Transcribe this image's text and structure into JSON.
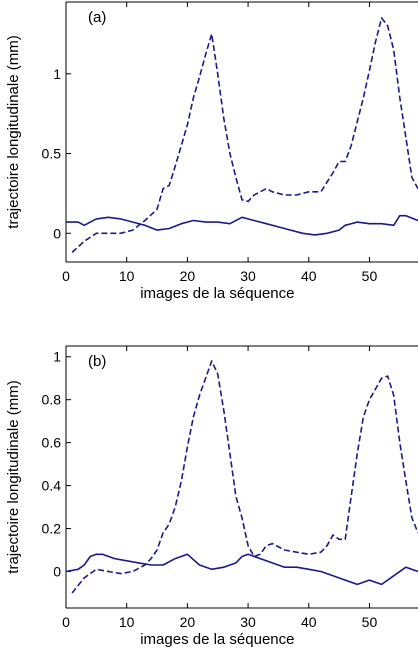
{
  "chart_data": [
    {
      "type": "line",
      "annotation": "(a)",
      "xlabel": "images de la séquence",
      "ylabel": "trajectoire longitudinale (mm)",
      "xlim": [
        0,
        58
      ],
      "ylim": [
        -0.18,
        1.45
      ],
      "xticks": [
        "0",
        "10",
        "20",
        "30",
        "40",
        "50"
      ],
      "yticks": [
        "0",
        "0.5",
        "1"
      ],
      "grid": false,
      "line_color": "#1a1a8c",
      "series": [
        {
          "style": "dashed",
          "x": [
            1,
            3,
            5,
            7,
            9,
            11,
            13,
            15,
            16,
            17,
            18,
            19,
            20,
            21,
            22,
            23,
            24,
            25,
            26,
            27,
            28,
            29,
            30,
            31,
            32,
            33,
            34,
            36,
            38,
            40,
            42,
            44,
            45,
            46,
            47,
            48,
            49,
            50,
            51,
            52,
            53,
            54,
            55,
            56,
            57,
            58
          ],
          "y": [
            -0.12,
            -0.05,
            0.0,
            0.0,
            0.0,
            0.02,
            0.08,
            0.15,
            0.28,
            0.3,
            0.42,
            0.55,
            0.68,
            0.85,
            0.98,
            1.12,
            1.25,
            1.0,
            0.72,
            0.5,
            0.35,
            0.21,
            0.2,
            0.24,
            0.26,
            0.28,
            0.26,
            0.24,
            0.24,
            0.26,
            0.26,
            0.38,
            0.45,
            0.45,
            0.55,
            0.7,
            0.85,
            1.02,
            1.2,
            1.35,
            1.3,
            1.15,
            0.85,
            0.6,
            0.35,
            0.28
          ]
        },
        {
          "style": "solid",
          "x": [
            0,
            2,
            3,
            5,
            7,
            9,
            11,
            13,
            15,
            17,
            19,
            21,
            23,
            25,
            27,
            29,
            30,
            31,
            33,
            35,
            37,
            39,
            41,
            43,
            45,
            46,
            48,
            50,
            52,
            54,
            55,
            56,
            58
          ],
          "y": [
            0.07,
            0.07,
            0.05,
            0.09,
            0.1,
            0.09,
            0.07,
            0.05,
            0.02,
            0.03,
            0.06,
            0.08,
            0.07,
            0.07,
            0.06,
            0.1,
            0.09,
            0.08,
            0.06,
            0.04,
            0.02,
            0.0,
            -0.01,
            0.0,
            0.02,
            0.05,
            0.07,
            0.06,
            0.06,
            0.05,
            0.11,
            0.11,
            0.08
          ]
        }
      ]
    },
    {
      "type": "line",
      "annotation": "(b)",
      "xlabel": "images de la séquence",
      "ylabel": "trajectoire longitudinale (mm)",
      "xlim": [
        0,
        58
      ],
      "ylim": [
        -0.17,
        1.05
      ],
      "xticks": [
        "0",
        "10",
        "20",
        "30",
        "40",
        "50"
      ],
      "yticks": [
        "0",
        "0.2",
        "0.4",
        "0.6",
        "0.8",
        "1"
      ],
      "grid": false,
      "line_color": "#1a1a8c",
      "series": [
        {
          "style": "dashed",
          "x": [
            1,
            3,
            5,
            7,
            9,
            11,
            13,
            14,
            15,
            16,
            17,
            18,
            19,
            20,
            21,
            22,
            23,
            24,
            25,
            26,
            27,
            28,
            29,
            30,
            31,
            32,
            33,
            34,
            36,
            38,
            40,
            42,
            43,
            44,
            45,
            46,
            47,
            48,
            49,
            50,
            51,
            52,
            53,
            54,
            55,
            56,
            57,
            58
          ],
          "y": [
            -0.1,
            -0.03,
            0.01,
            0.0,
            -0.01,
            0.0,
            0.03,
            0.06,
            0.1,
            0.18,
            0.22,
            0.3,
            0.42,
            0.58,
            0.72,
            0.82,
            0.9,
            0.98,
            0.92,
            0.75,
            0.55,
            0.35,
            0.25,
            0.12,
            0.07,
            0.08,
            0.12,
            0.13,
            0.1,
            0.09,
            0.08,
            0.09,
            0.12,
            0.17,
            0.15,
            0.15,
            0.35,
            0.55,
            0.72,
            0.8,
            0.85,
            0.9,
            0.91,
            0.82,
            0.6,
            0.42,
            0.25,
            0.18
          ]
        },
        {
          "style": "solid",
          "x": [
            0,
            2,
            3,
            4,
            5,
            6,
            8,
            10,
            12,
            14,
            16,
            18,
            20,
            22,
            24,
            26,
            28,
            29,
            30,
            32,
            34,
            36,
            38,
            40,
            42,
            44,
            46,
            48,
            50,
            52,
            54,
            56,
            58
          ],
          "y": [
            0.0,
            0.01,
            0.03,
            0.07,
            0.08,
            0.08,
            0.06,
            0.05,
            0.04,
            0.03,
            0.03,
            0.06,
            0.08,
            0.03,
            0.01,
            0.02,
            0.04,
            0.07,
            0.08,
            0.06,
            0.04,
            0.02,
            0.02,
            0.01,
            0.0,
            -0.02,
            -0.04,
            -0.06,
            -0.04,
            -0.06,
            -0.02,
            0.02,
            0.0
          ]
        }
      ]
    }
  ]
}
